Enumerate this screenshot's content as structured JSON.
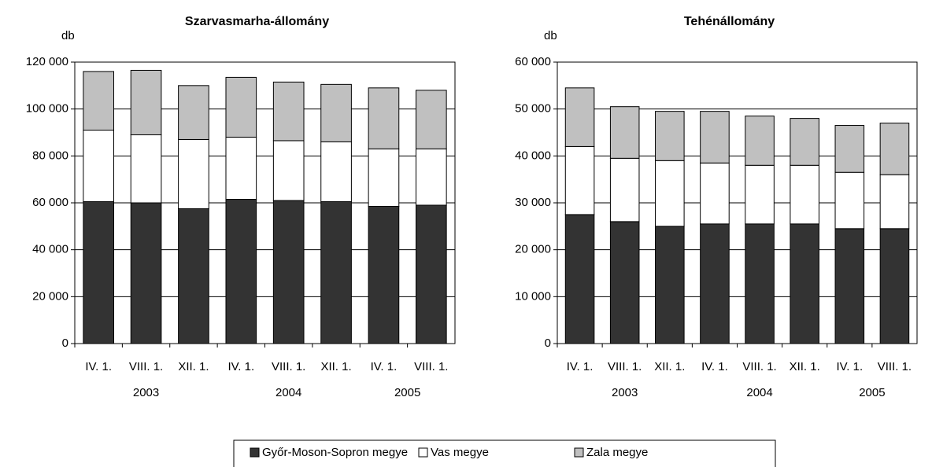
{
  "chart_data": [
    {
      "type": "bar",
      "stacked": true,
      "title": "Szarvasmarha-állomány",
      "y_label": "db",
      "categories": [
        "IV. 1.",
        "VIII. 1.",
        "XII. 1.",
        "IV. 1.",
        "VIII. 1.",
        "XII. 1.",
        "IV. 1.",
        "VIII. 1."
      ],
      "groups": [
        {
          "label": "2003",
          "count": 3
        },
        {
          "label": "2004",
          "count": 3
        },
        {
          "label": "2005",
          "count": 2
        }
      ],
      "ylim": [
        0,
        120000
      ],
      "yticks": [
        0,
        {
          "value": 20000,
          "label": "20 000"
        },
        {
          "value": 40000,
          "label": "40 000"
        },
        {
          "value": 60000,
          "label": "60 000"
        },
        {
          "value": 80000,
          "label": "80 000"
        },
        {
          "value": 100000,
          "label": "100 000"
        },
        {
          "value": 120000,
          "label": "120 000"
        }
      ],
      "grid": true,
      "series": [
        {
          "name": "Győr-Moson-Sopron megye",
          "color": "#333333",
          "values": [
            60500,
            60000,
            57500,
            61500,
            61000,
            60500,
            58500,
            59000
          ]
        },
        {
          "name": "Vas megye",
          "color": "#ffffff",
          "values": [
            30500,
            29000,
            29500,
            26500,
            25500,
            25500,
            24500,
            24000
          ]
        },
        {
          "name": "Zala megye",
          "color": "#c0c0c0",
          "values": [
            25000,
            27500,
            23000,
            25500,
            25000,
            24500,
            26000,
            25000
          ]
        }
      ]
    },
    {
      "type": "bar",
      "stacked": true,
      "title": "Tehénállomány",
      "y_label": "db",
      "categories": [
        "IV. 1.",
        "VIII. 1.",
        "XII. 1.",
        "IV. 1.",
        "VIII. 1.",
        "XII. 1.",
        "IV. 1.",
        "VIII. 1."
      ],
      "groups": [
        {
          "label": "2003",
          "count": 3
        },
        {
          "label": "2004",
          "count": 3
        },
        {
          "label": "2005",
          "count": 2
        }
      ],
      "ylim": [
        0,
        60000
      ],
      "yticks": [
        0,
        {
          "value": 10000,
          "label": "10 000"
        },
        {
          "value": 20000,
          "label": "20 000"
        },
        {
          "value": 30000,
          "label": "30 000"
        },
        {
          "value": 40000,
          "label": "40 000"
        },
        {
          "value": 50000,
          "label": "50 000"
        },
        {
          "value": 60000,
          "label": "60 000"
        }
      ],
      "grid": true,
      "series": [
        {
          "color": "#333333",
          "values": [
            27500,
            26000,
            25000,
            25500,
            25500,
            25500,
            24500,
            24500
          ]
        },
        {
          "color": "#ffffff",
          "values": [
            14500,
            13500,
            14000,
            13000,
            12500,
            12500,
            12000,
            11500
          ]
        },
        {
          "color": "#c0c0c0",
          "values": [
            12500,
            11000,
            10500,
            11000,
            10500,
            10000,
            10000,
            11000
          ]
        }
      ]
    }
  ]
}
